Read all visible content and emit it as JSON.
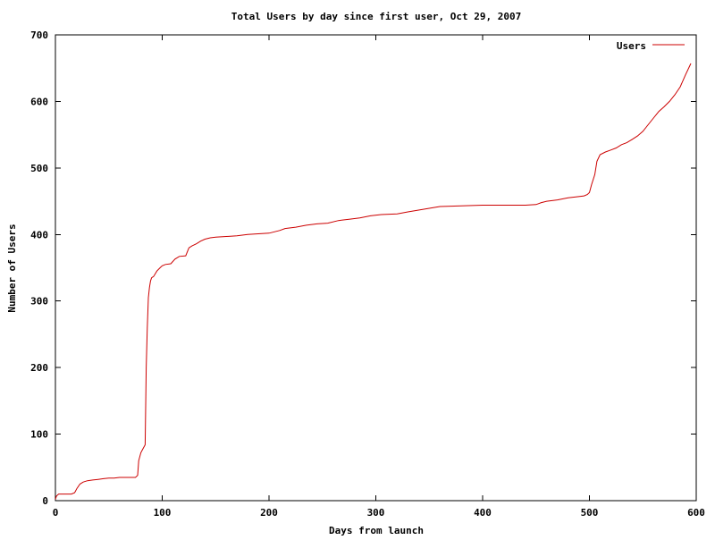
{
  "chart_data": {
    "type": "line",
    "title": "Total Users by day since first user, Oct 29, 2007",
    "xlabel": "Days from launch",
    "ylabel": "Number of Users",
    "xlim": [
      0,
      600
    ],
    "ylim": [
      0,
      700
    ],
    "x_ticks": [
      0,
      100,
      200,
      300,
      400,
      500,
      600
    ],
    "y_ticks": [
      0,
      100,
      200,
      300,
      400,
      500,
      600,
      700
    ],
    "grid": false,
    "legend": "top-right",
    "series": [
      {
        "name": "Users",
        "color": "#cc0000",
        "x": [
          0,
          1,
          3,
          5,
          10,
          15,
          18,
          20,
          23,
          26,
          30,
          35,
          40,
          45,
          50,
          55,
          60,
          65,
          70,
          75,
          77,
          78,
          80,
          82,
          84,
          85,
          86,
          87,
          88,
          89,
          90,
          92,
          95,
          98,
          100,
          103,
          108,
          112,
          116,
          122,
          125,
          128,
          132,
          136,
          140,
          145,
          150,
          160,
          170,
          180,
          190,
          200,
          205,
          210,
          215,
          225,
          235,
          245,
          255,
          265,
          275,
          285,
          295,
          305,
          320,
          330,
          345,
          360,
          380,
          400,
          420,
          440,
          450,
          455,
          460,
          470,
          480,
          490,
          495,
          498,
          500,
          502,
          505,
          507,
          510,
          515,
          520,
          525,
          530,
          535,
          540,
          545,
          550,
          555,
          560,
          565,
          570,
          575,
          580,
          585,
          590,
          595
        ],
        "y": [
          2,
          7,
          10,
          10,
          10,
          10,
          12,
          18,
          25,
          28,
          30,
          31,
          32,
          33,
          34,
          34,
          35,
          35,
          35,
          35,
          38,
          60,
          72,
          78,
          84,
          200,
          260,
          305,
          320,
          330,
          335,
          337,
          345,
          350,
          353,
          355,
          356,
          363,
          367,
          368,
          380,
          383,
          386,
          390,
          393,
          395,
          396,
          397,
          398,
          400,
          401,
          402,
          404,
          406,
          409,
          411,
          414,
          416,
          417,
          421,
          423,
          425,
          428,
          430,
          431,
          434,
          438,
          442,
          443,
          444,
          444,
          444,
          445,
          448,
          450,
          452,
          455,
          457,
          458,
          460,
          463,
          475,
          490,
          510,
          520,
          524,
          527,
          530,
          535,
          538,
          543,
          548,
          555,
          565,
          575,
          585,
          592,
          600,
          610,
          622,
          640,
          657
        ]
      }
    ]
  }
}
